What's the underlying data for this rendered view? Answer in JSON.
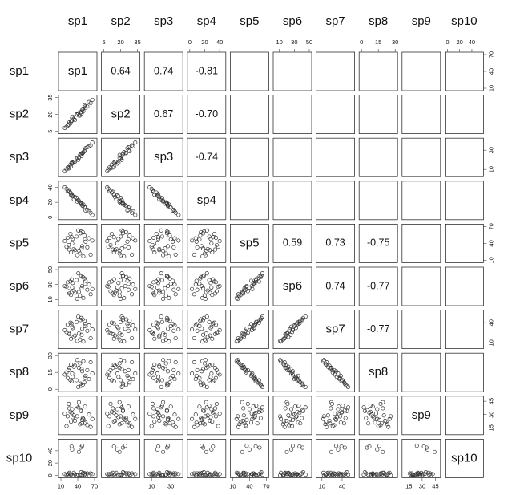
{
  "chart_data": {
    "type": "pairs",
    "series": [
      {
        "name": "sp1",
        "lim": [
          10,
          70
        ],
        "ticks": [
          10,
          40,
          70
        ],
        "values": [
          22,
          28,
          45,
          57,
          38,
          50,
          17,
          52,
          42,
          31,
          63,
          27,
          48,
          41,
          33,
          54,
          24,
          49,
          44,
          30,
          60,
          35,
          46,
          20,
          53,
          39,
          66,
          29,
          47,
          25
        ]
      },
      {
        "name": "sp2",
        "lim": [
          5,
          35
        ],
        "ticks": [
          5,
          20,
          35
        ],
        "values": [
          10,
          14,
          22,
          27,
          20,
          23,
          8,
          28,
          19,
          18,
          30,
          12,
          24,
          21,
          16,
          26,
          11,
          25,
          19,
          17,
          31,
          15,
          22,
          9,
          27,
          20,
          33,
          14,
          21,
          13
        ]
      },
      {
        "name": "sp3",
        "lim": [
          5,
          40
        ],
        "ticks": [
          10,
          30
        ],
        "values": [
          12,
          13,
          26,
          33,
          21,
          28,
          8,
          29,
          22,
          17,
          35,
          15,
          27,
          20,
          18,
          32,
          11,
          27,
          25,
          16,
          34,
          18,
          26,
          10,
          30,
          22,
          38,
          17,
          24,
          12
        ]
      },
      {
        "name": "sp4",
        "lim": [
          0,
          45
        ],
        "ticks": [
          0,
          20,
          40
        ],
        "values": [
          35,
          30,
          18,
          10,
          26,
          17,
          40,
          14,
          22,
          28,
          6,
          33,
          16,
          23,
          24,
          9,
          36,
          15,
          20,
          29,
          8,
          27,
          19,
          38,
          13,
          21,
          3,
          31,
          18,
          34
        ]
      },
      {
        "name": "sp5",
        "lim": [
          10,
          70
        ],
        "ticks": [
          10,
          40,
          70
        ],
        "values": [
          50,
          24,
          58,
          33,
          52,
          17,
          44,
          54,
          27,
          48,
          20,
          57,
          35,
          63,
          30,
          43,
          37,
          60,
          22,
          40,
          49,
          28,
          61,
          34,
          47,
          19,
          45,
          51,
          31,
          29
        ]
      },
      {
        "name": "sp6",
        "lim": [
          5,
          50
        ],
        "ticks": [
          10,
          30,
          50
        ],
        "values": [
          33,
          16,
          41,
          23,
          36,
          12,
          28,
          38,
          20,
          32,
          17,
          34,
          28,
          45,
          22,
          35,
          21,
          40,
          15,
          26,
          30,
          19,
          42,
          27,
          31,
          11,
          24,
          37,
          25,
          18
        ]
      },
      {
        "name": "sp7",
        "lim": [
          5,
          55
        ],
        "ticks": [
          10,
          40
        ],
        "values": [
          37,
          16,
          44,
          28,
          41,
          12,
          29,
          43,
          24,
          32,
          17,
          40,
          31,
          49,
          19,
          38,
          25,
          45,
          15,
          34,
          36,
          21,
          47,
          26,
          35,
          13,
          30,
          39,
          22,
          23
        ]
      },
      {
        "name": "sp8",
        "lim": [
          0,
          30
        ],
        "ticks": [
          0,
          15,
          30
        ],
        "values": [
          10,
          22,
          5,
          17,
          8,
          25,
          13,
          6,
          19,
          11,
          24,
          8,
          16,
          2,
          20,
          12,
          17,
          4,
          23,
          14,
          9,
          21,
          3,
          15,
          10,
          26,
          14,
          7,
          18,
          19
        ]
      },
      {
        "name": "sp9",
        "lim": [
          10,
          48
        ],
        "ticks": [
          15,
          30,
          45
        ],
        "values": [
          28,
          22,
          35,
          18,
          40,
          25,
          31,
          20,
          44,
          27,
          16,
          33,
          24,
          38,
          29,
          21,
          42,
          26,
          19,
          36,
          30,
          23,
          34,
          17,
          39,
          28,
          25,
          32,
          20,
          37
        ]
      },
      {
        "name": "sp10",
        "lim": [
          0,
          55
        ],
        "ticks": [
          0,
          20,
          40
        ],
        "values": [
          2,
          1,
          45,
          3,
          0,
          4,
          2,
          1,
          38,
          0,
          3,
          2,
          48,
          1,
          4,
          0,
          2,
          3,
          1,
          42,
          0,
          2,
          5,
          1,
          3,
          0,
          2,
          47,
          1,
          4
        ]
      }
    ],
    "correlations": {
      "pairs": [
        [
          0,
          1
        ],
        [
          0,
          2
        ],
        [
          0,
          3
        ],
        [
          1,
          2
        ],
        [
          1,
          3
        ],
        [
          2,
          3
        ],
        [
          4,
          5
        ],
        [
          4,
          6
        ],
        [
          4,
          7
        ],
        [
          5,
          6
        ],
        [
          5,
          7
        ],
        [
          6,
          7
        ]
      ],
      "values": [
        0.64,
        0.74,
        -0.81,
        0.67,
        -0.7,
        -0.74,
        0.59,
        0.73,
        -0.75,
        0.74,
        -0.77,
        -0.77
      ],
      "value_labels": [
        "0.64",
        "0.74",
        "-0.81",
        "0.67",
        "-0.70",
        "-0.74",
        "0.59",
        "0.73",
        "-0.75",
        "0.74",
        "-0.77",
        "-0.77"
      ]
    },
    "point_color": "#333333"
  }
}
